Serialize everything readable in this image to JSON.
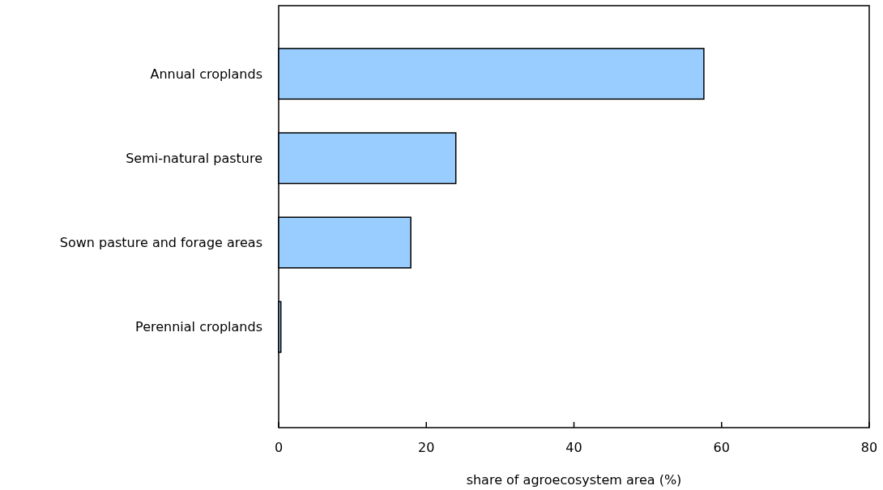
{
  "chart_data": {
    "type": "bar",
    "orientation": "horizontal",
    "xlabel": "share of agroecosystem area (%)",
    "categories": [
      "Annual croplands",
      "Semi-natural pasture",
      "Sown pasture and forage areas",
      "Perennial croplands"
    ],
    "values": [
      57.6,
      24.0,
      17.9,
      0.3
    ],
    "color": "#99ccff",
    "xlim": [
      0,
      80
    ],
    "xticks": [
      0,
      20,
      40,
      60,
      80
    ],
    "grid": false
  }
}
